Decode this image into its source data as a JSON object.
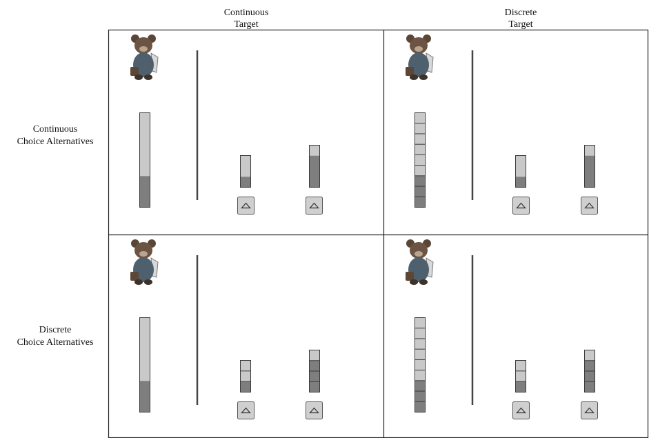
{
  "column_headers": [
    {
      "lines": [
        "Continuous",
        "Target"
      ]
    },
    {
      "lines": [
        "Discrete",
        "Target"
      ]
    }
  ],
  "row_headers": [
    {
      "lines": [
        "Continuous",
        "Choice Alternatives"
      ]
    },
    {
      "lines": [
        "Discrete",
        "Choice Alternatives"
      ]
    }
  ]
}
